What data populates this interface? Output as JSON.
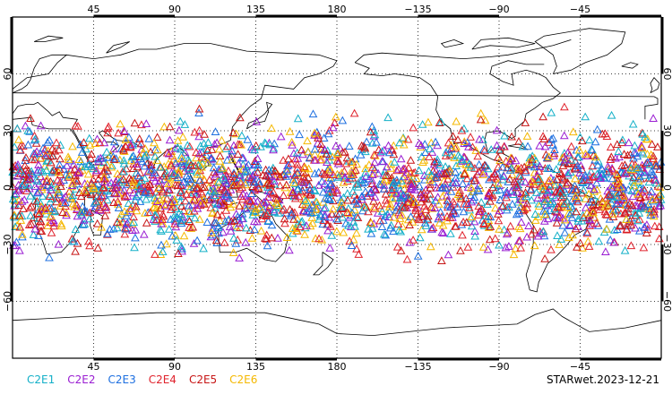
{
  "map": {
    "projection": "cylindrical equidistant",
    "lon_range": [
      0,
      360
    ],
    "lat_range": [
      -90,
      90
    ],
    "grid": "dotted, every 45 deg longitude and 30 deg latitude",
    "lon_ticks": [
      "45",
      "90",
      "135",
      "180",
      "−135",
      "−90",
      "−45"
    ],
    "lat_ticks": [
      "60",
      "30",
      "0",
      "−30",
      "−60"
    ],
    "marker": "open triangle",
    "observation_lat_band": [
      -45,
      45
    ]
  },
  "legend": {
    "items": [
      {
        "label": "C2E1",
        "color": "#14b0c8"
      },
      {
        "label": "C2E2",
        "color": "#9a1ed2"
      },
      {
        "label": "C2E3",
        "color": "#1d6fe0"
      },
      {
        "label": "C2E4",
        "color": "#e0232d"
      },
      {
        "label": "C2E5",
        "color": "#c71515"
      },
      {
        "label": "C2E6",
        "color": "#f5b800"
      }
    ]
  },
  "footer": {
    "label": "STARwet.2023-12-21"
  }
}
